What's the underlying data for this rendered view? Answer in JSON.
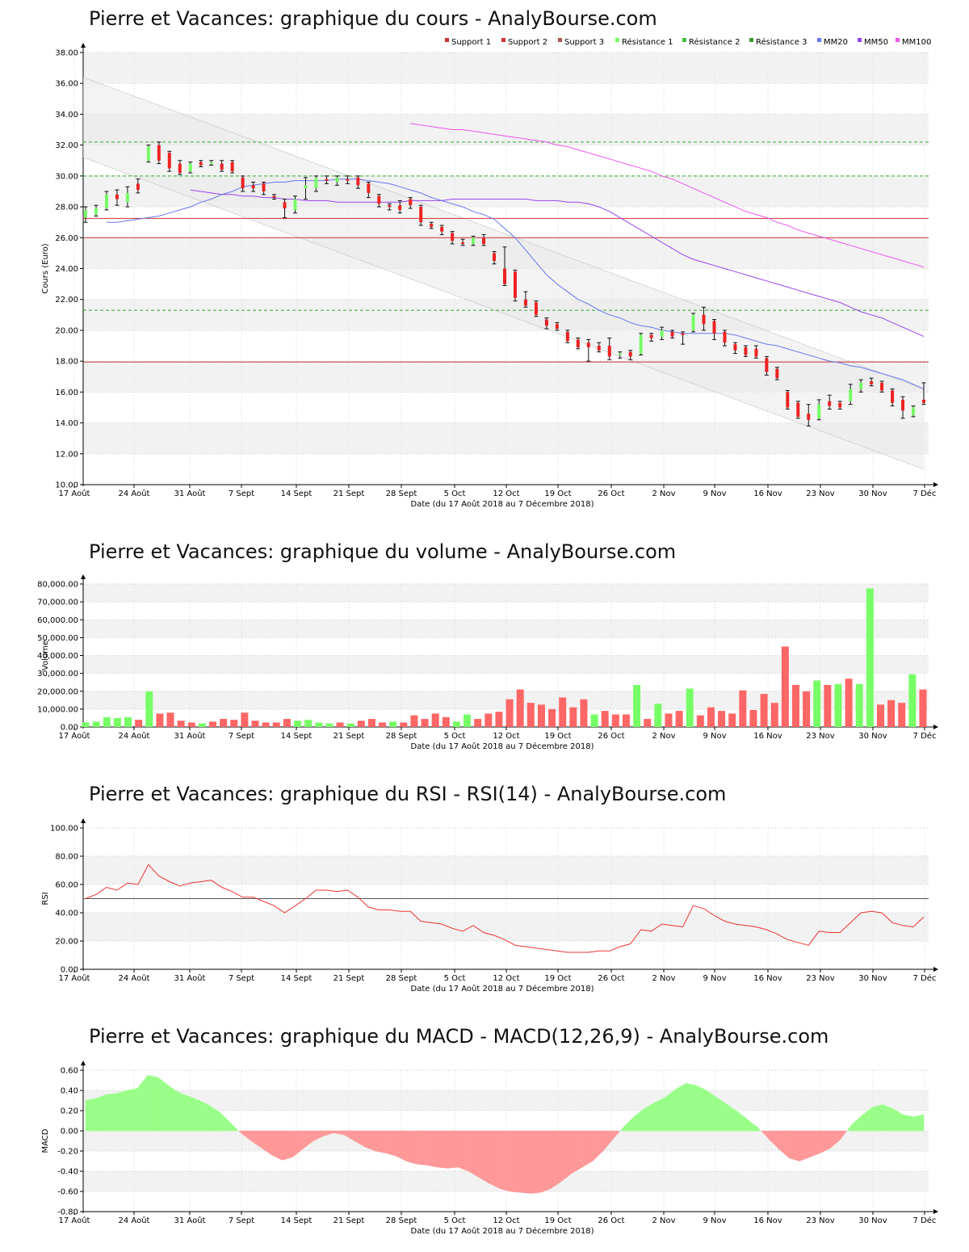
{
  "colors": {
    "up": "#77ff66",
    "down": "#ee2222",
    "support_line": "#cc3333",
    "resistance_line": "#33aa33",
    "mm20": "#6677ee",
    "mm50": "#9944ee",
    "mm100": "#ee55ee",
    "vol_up": "#77ff66",
    "vol_down": "#ff6666",
    "rsi": "#ee3333",
    "macd_pos": "#99ff88",
    "macd_neg": "#ff9999",
    "band": "#f2f2f2"
  },
  "x_ticks": [
    "17 Août",
    "24 Août",
    "31 Août",
    "7 Sept",
    "14 Sept",
    "21 Sept",
    "28 Sept",
    "5 Oct",
    "12 Oct",
    "19 Oct",
    "26 Oct",
    "2 Nov",
    "9 Nov",
    "16 Nov",
    "23 Nov",
    "30 Nov",
    "7 Déc"
  ],
  "x_label": "Date (du 17 Août 2018 au 7 Décembre 2018)",
  "chart_data": [
    {
      "type": "candlestick",
      "title": "Pierre et Vacances: graphique du cours - AnalyBourse.com",
      "ylabel": "Cours (Euro)",
      "xlabel": "Date (du 17 Août 2018 au 7 Décembre 2018)",
      "ylim": [
        10,
        38
      ],
      "y_ticks": [
        "10.00",
        "12.00",
        "14.00",
        "16.00",
        "18.00",
        "20.00",
        "22.00",
        "24.00",
        "26.00",
        "28.00",
        "30.00",
        "32.00",
        "34.00",
        "36.00",
        "38.00"
      ],
      "legend": [
        "Support 1",
        "Support 2",
        "Support 3",
        "Résistance 1",
        "Résistance 2",
        "Résistance 3",
        "MM20",
        "MM50",
        "MM100"
      ],
      "legend_position": "top-right",
      "supports": [
        27.25,
        26.0,
        17.95
      ],
      "resistances": [
        32.2,
        30.0,
        21.3
      ],
      "channel_upper": [
        36.4,
        16.2
      ],
      "channel_lower": [
        31.2,
        11.0
      ],
      "candles": [
        {
          "o": 27.3,
          "c": 27.8,
          "h": 28.0,
          "l": 27.0
        },
        {
          "o": 27.5,
          "c": 27.9,
          "h": 28.1,
          "l": 27.4
        },
        {
          "o": 27.9,
          "c": 28.8,
          "h": 29.0,
          "l": 27.8
        },
        {
          "o": 28.8,
          "c": 28.5,
          "h": 29.1,
          "l": 28.1
        },
        {
          "o": 28.3,
          "c": 28.9,
          "h": 29.3,
          "l": 28.0
        },
        {
          "o": 29.5,
          "c": 29.1,
          "h": 29.8,
          "l": 28.9
        },
        {
          "o": 31.0,
          "c": 31.9,
          "h": 32.0,
          "l": 30.9
        },
        {
          "o": 32.0,
          "c": 31.0,
          "h": 32.2,
          "l": 30.8
        },
        {
          "o": 31.5,
          "c": 30.5,
          "h": 31.6,
          "l": 30.3
        },
        {
          "o": 30.8,
          "c": 30.2,
          "h": 31.0,
          "l": 30.1
        },
        {
          "o": 30.3,
          "c": 30.8,
          "h": 30.9,
          "l": 30.2
        },
        {
          "o": 30.9,
          "c": 30.7,
          "h": 31.0,
          "l": 30.6
        },
        {
          "o": 30.8,
          "c": 30.9,
          "h": 31.0,
          "l": 30.7
        },
        {
          "o": 30.8,
          "c": 30.4,
          "h": 31.0,
          "l": 30.3
        },
        {
          "o": 30.9,
          "c": 30.3,
          "h": 31.0,
          "l": 30.2
        },
        {
          "o": 29.9,
          "c": 29.2,
          "h": 30.0,
          "l": 29.0
        },
        {
          "o": 29.4,
          "c": 29.2,
          "h": 29.6,
          "l": 29.0
        },
        {
          "o": 29.5,
          "c": 29.0,
          "h": 29.6,
          "l": 28.8
        },
        {
          "o": 28.7,
          "c": 28.6,
          "h": 28.8,
          "l": 28.5
        },
        {
          "o": 28.3,
          "c": 27.9,
          "h": 28.5,
          "l": 27.3
        },
        {
          "o": 27.8,
          "c": 28.5,
          "h": 28.7,
          "l": 27.6
        },
        {
          "o": 29.2,
          "c": 29.4,
          "h": 29.9,
          "l": 28.5
        },
        {
          "o": 29.2,
          "c": 29.9,
          "h": 30.0,
          "l": 29.0
        },
        {
          "o": 29.8,
          "c": 29.7,
          "h": 30.0,
          "l": 29.5
        },
        {
          "o": 29.6,
          "c": 29.9,
          "h": 30.0,
          "l": 29.4
        },
        {
          "o": 29.8,
          "c": 29.7,
          "h": 30.0,
          "l": 29.5
        },
        {
          "o": 29.9,
          "c": 29.4,
          "h": 30.0,
          "l": 29.2
        },
        {
          "o": 29.5,
          "c": 28.9,
          "h": 29.6,
          "l": 28.6
        },
        {
          "o": 28.7,
          "c": 28.2,
          "h": 28.8,
          "l": 28.0
        },
        {
          "o": 28.1,
          "c": 28.0,
          "h": 28.2,
          "l": 27.8
        },
        {
          "o": 28.1,
          "c": 27.8,
          "h": 28.4,
          "l": 27.6
        },
        {
          "o": 28.5,
          "c": 28.1,
          "h": 28.6,
          "l": 27.9
        },
        {
          "o": 28.0,
          "c": 27.0,
          "h": 28.1,
          "l": 26.8
        },
        {
          "o": 26.9,
          "c": 26.7,
          "h": 27.0,
          "l": 26.6
        },
        {
          "o": 26.7,
          "c": 26.4,
          "h": 26.8,
          "l": 26.2
        },
        {
          "o": 26.3,
          "c": 25.8,
          "h": 26.4,
          "l": 25.6
        },
        {
          "o": 25.7,
          "c": 25.6,
          "h": 25.9,
          "l": 25.5
        },
        {
          "o": 25.6,
          "c": 26.0,
          "h": 26.1,
          "l": 25.5
        },
        {
          "o": 26.0,
          "c": 25.6,
          "h": 26.2,
          "l": 25.5
        },
        {
          "o": 25.0,
          "c": 24.5,
          "h": 25.1,
          "l": 24.3
        },
        {
          "o": 24.0,
          "c": 23.0,
          "h": 25.4,
          "l": 22.9
        },
        {
          "o": 23.8,
          "c": 22.1,
          "h": 23.9,
          "l": 21.9
        },
        {
          "o": 22.0,
          "c": 21.6,
          "h": 22.5,
          "l": 21.5
        },
        {
          "o": 21.8,
          "c": 21.0,
          "h": 21.9,
          "l": 20.9
        },
        {
          "o": 20.7,
          "c": 20.3,
          "h": 20.8,
          "l": 20.1
        },
        {
          "o": 20.4,
          "c": 20.1,
          "h": 20.5,
          "l": 20.0
        },
        {
          "o": 19.9,
          "c": 19.3,
          "h": 20.0,
          "l": 19.2
        },
        {
          "o": 19.4,
          "c": 18.9,
          "h": 19.5,
          "l": 18.8
        },
        {
          "o": 19.2,
          "c": 18.9,
          "h": 19.4,
          "l": 18.0
        },
        {
          "o": 19.0,
          "c": 18.7,
          "h": 19.2,
          "l": 18.6
        },
        {
          "o": 19.0,
          "c": 18.3,
          "h": 19.5,
          "l": 18.1
        },
        {
          "o": 18.4,
          "c": 18.5,
          "h": 18.6,
          "l": 18.2
        },
        {
          "o": 18.6,
          "c": 18.3,
          "h": 18.7,
          "l": 18.1
        },
        {
          "o": 18.5,
          "c": 19.7,
          "h": 19.8,
          "l": 18.4
        },
        {
          "o": 19.7,
          "c": 19.5,
          "h": 19.8,
          "l": 19.3
        },
        {
          "o": 19.6,
          "c": 20.0,
          "h": 20.2,
          "l": 19.4
        },
        {
          "o": 19.9,
          "c": 19.6,
          "h": 20.0,
          "l": 19.5
        },
        {
          "o": 19.8,
          "c": 19.7,
          "h": 19.9,
          "l": 19.1
        },
        {
          "o": 20.0,
          "c": 21.0,
          "h": 21.1,
          "l": 19.9
        },
        {
          "o": 21.0,
          "c": 20.4,
          "h": 21.5,
          "l": 20.0
        },
        {
          "o": 20.6,
          "c": 19.8,
          "h": 20.7,
          "l": 19.4
        },
        {
          "o": 19.9,
          "c": 19.2,
          "h": 20.0,
          "l": 19.0
        },
        {
          "o": 19.1,
          "c": 18.7,
          "h": 19.2,
          "l": 18.5
        },
        {
          "o": 18.9,
          "c": 18.4,
          "h": 19.0,
          "l": 18.3
        },
        {
          "o": 18.8,
          "c": 18.3,
          "h": 19.0,
          "l": 18.2
        },
        {
          "o": 18.2,
          "c": 17.3,
          "h": 18.3,
          "l": 17.1
        },
        {
          "o": 17.5,
          "c": 16.9,
          "h": 17.6,
          "l": 16.8
        },
        {
          "o": 16.0,
          "c": 15.0,
          "h": 16.1,
          "l": 14.9
        },
        {
          "o": 15.3,
          "c": 14.4,
          "h": 15.4,
          "l": 14.3
        },
        {
          "o": 14.6,
          "c": 14.2,
          "h": 15.2,
          "l": 13.8
        },
        {
          "o": 14.3,
          "c": 15.2,
          "h": 15.5,
          "l": 14.2
        },
        {
          "o": 15.4,
          "c": 15.1,
          "h": 15.8,
          "l": 14.9
        },
        {
          "o": 15.3,
          "c": 15.0,
          "h": 15.4,
          "l": 14.9
        },
        {
          "o": 15.4,
          "c": 16.2,
          "h": 16.5,
          "l": 15.2
        },
        {
          "o": 16.2,
          "c": 16.6,
          "h": 16.8,
          "l": 16.0
        },
        {
          "o": 16.7,
          "c": 16.5,
          "h": 16.9,
          "l": 16.4
        },
        {
          "o": 16.6,
          "c": 16.1,
          "h": 16.7,
          "l": 16.0
        },
        {
          "o": 16.1,
          "c": 15.3,
          "h": 16.2,
          "l": 15.1
        },
        {
          "o": 15.5,
          "c": 14.8,
          "h": 15.7,
          "l": 14.3
        },
        {
          "o": 14.5,
          "c": 15.0,
          "h": 15.1,
          "l": 14.4
        },
        {
          "o": 15.5,
          "c": 15.3,
          "h": 16.6,
          "l": 15.2
        }
      ],
      "mm20": [
        27.0,
        27.0,
        27.1,
        27.2,
        27.3,
        27.4,
        27.6,
        27.8,
        28.0,
        28.3,
        28.5,
        28.8,
        29.0,
        29.3,
        29.4,
        29.5,
        29.6,
        29.6,
        29.7,
        29.7,
        29.7,
        29.7,
        29.8,
        29.8,
        29.8,
        29.7,
        29.6,
        29.5,
        29.3,
        29.1,
        28.9,
        28.6,
        28.4,
        28.2,
        28.0,
        27.7,
        27.5,
        27.2,
        26.6,
        26.0,
        25.2,
        24.4,
        23.6,
        23.0,
        22.5,
        22.0,
        21.7,
        21.3,
        21.0,
        20.8,
        20.5,
        20.3,
        20.2,
        20.0,
        19.9,
        19.8,
        19.8,
        19.8,
        19.8,
        19.8,
        19.7,
        19.5,
        19.3,
        19.1,
        19.0,
        18.8,
        18.6,
        18.4,
        18.2,
        18.0,
        17.9,
        17.7,
        17.6,
        17.4,
        17.2,
        17.0,
        16.8,
        16.5,
        16.2
      ],
      "mm50": [
        29.1,
        29.0,
        28.9,
        28.8,
        28.8,
        28.7,
        28.7,
        28.6,
        28.6,
        28.5,
        28.5,
        28.4,
        28.4,
        28.4,
        28.3,
        28.3,
        28.3,
        28.3,
        28.3,
        28.3,
        28.3,
        28.4,
        28.4,
        28.4,
        28.4,
        28.5,
        28.5,
        28.5,
        28.5,
        28.5,
        28.5,
        28.5,
        28.5,
        28.4,
        28.4,
        28.4,
        28.3,
        28.3,
        28.2,
        28.0,
        27.7,
        27.3,
        26.9,
        26.5,
        26.1,
        25.7,
        25.3,
        24.9,
        24.6,
        24.4,
        24.2,
        24.0,
        23.8,
        23.6,
        23.4,
        23.2,
        23.0,
        22.8,
        22.6,
        22.4,
        22.2,
        22.0,
        21.8,
        21.5,
        21.2,
        21.0,
        20.8,
        20.5,
        20.2,
        19.9,
        19.6
      ],
      "mm100": [
        33.4,
        33.3,
        33.2,
        33.1,
        33.0,
        33.0,
        32.9,
        32.8,
        32.7,
        32.6,
        32.5,
        32.4,
        32.3,
        32.2,
        32.0,
        31.9,
        31.7,
        31.5,
        31.3,
        31.1,
        30.9,
        30.7,
        30.5,
        30.3,
        30.0,
        29.8,
        29.5,
        29.2,
        28.9,
        28.6,
        28.3,
        28.0,
        27.7,
        27.5,
        27.3,
        27.0,
        26.8,
        26.5,
        26.3,
        26.1,
        25.9,
        25.7,
        25.5,
        25.3,
        25.1,
        24.9,
        24.7,
        24.5,
        24.3,
        24.1
      ]
    },
    {
      "type": "bar",
      "title": "Pierre et Vacances: graphique du volume - AnalyBourse.com",
      "ylabel": "Volume",
      "xlabel": "Date (du 17 Août 2018 au 7 Décembre 2018)",
      "ylim": [
        0,
        80000
      ],
      "y_ticks": [
        "0.00",
        "10,000.00",
        "20,000.00",
        "30,000.00",
        "40,000.00",
        "50,000.00",
        "60,000.00",
        "70,000.00",
        "80,000.00"
      ],
      "values": [
        2500,
        3000,
        5500,
        5000,
        5500,
        4000,
        20000,
        7500,
        8000,
        3500,
        2500,
        2000,
        3000,
        4500,
        4000,
        8000,
        3500,
        2500,
        2500,
        4500,
        3500,
        4000,
        2500,
        2000,
        2500,
        2000,
        3500,
        4500,
        2500,
        3000,
        2500,
        6500,
        4500,
        7500,
        5500,
        3000,
        7000,
        4500,
        7500,
        8500,
        15500,
        21000,
        13500,
        12500,
        10000,
        16500,
        11000,
        15500,
        7000,
        9000,
        7000,
        7000,
        23500,
        4500,
        13000,
        7500,
        9000,
        21500,
        6500,
        11000,
        9000,
        7500,
        20500,
        9500,
        18500,
        13500,
        45000,
        23500,
        20000,
        26000,
        23500,
        24000,
        27000,
        24000,
        77500,
        12500,
        15000,
        13500,
        29500,
        21000
      ],
      "up": [
        1,
        1,
        1,
        1,
        1,
        0,
        1,
        0,
        0,
        0,
        0,
        1,
        0,
        0,
        0,
        0,
        0,
        0,
        0,
        0,
        1,
        1,
        1,
        1,
        0,
        1,
        0,
        0,
        0,
        1,
        0,
        0,
        0,
        0,
        0,
        1,
        1,
        0,
        0,
        0,
        0,
        0,
        0,
        0,
        0,
        0,
        0,
        0,
        1,
        0,
        0,
        0,
        1,
        0,
        1,
        0,
        0,
        1,
        0,
        0,
        0,
        0,
        0,
        0,
        0,
        0,
        0,
        0,
        0,
        1,
        0,
        1,
        0,
        1,
        1,
        0,
        0,
        0,
        1,
        0
      ]
    },
    {
      "type": "line",
      "title": "Pierre et Vacances: graphique du RSI - RSI(14) - AnalyBourse.com",
      "ylabel": "RSI",
      "xlabel": "Date (du 17 Août 2018 au 7 Décembre 2018)",
      "ylim": [
        0,
        100
      ],
      "y_ticks": [
        "0.00",
        "20.00",
        "40.00",
        "60.00",
        "80.00",
        "100.00"
      ],
      "reference_line": 50,
      "values": [
        50,
        53,
        58,
        56,
        61,
        60,
        74,
        66,
        62,
        59,
        61,
        62,
        63,
        58,
        55,
        51,
        51,
        48,
        45,
        40,
        45,
        50,
        56,
        56,
        55,
        56,
        51,
        44,
        42,
        42,
        41,
        41,
        34,
        33,
        32,
        29,
        27,
        31,
        26,
        24,
        21,
        17,
        16,
        15,
        14,
        13,
        12,
        12,
        12,
        13,
        13,
        16,
        18,
        28,
        27,
        32,
        31,
        30,
        45,
        43,
        38,
        34,
        32,
        31,
        30,
        28,
        25,
        21,
        19,
        17,
        27,
        26,
        26,
        33,
        40,
        41,
        40,
        33,
        31,
        30,
        37
      ]
    },
    {
      "type": "area",
      "title": "Pierre et Vacances: graphique du MACD - MACD(12,26,9) - AnalyBourse.com",
      "ylabel": "MACD",
      "xlabel": "Date (du 17 Août 2018 au 7 Décembre 2018)",
      "ylim": [
        -0.8,
        0.6
      ],
      "y_ticks": [
        "-0.80",
        "-0.60",
        "-0.40",
        "-0.20",
        "0.00",
        "0.20",
        "0.40",
        "0.60"
      ],
      "values": [
        0.3,
        0.32,
        0.36,
        0.37,
        0.4,
        0.42,
        0.55,
        0.53,
        0.45,
        0.38,
        0.34,
        0.3,
        0.25,
        0.18,
        0.08,
        -0.02,
        -0.1,
        -0.17,
        -0.24,
        -0.29,
        -0.26,
        -0.18,
        -0.1,
        -0.05,
        -0.02,
        -0.04,
        -0.1,
        -0.16,
        -0.2,
        -0.22,
        -0.25,
        -0.3,
        -0.33,
        -0.34,
        -0.36,
        -0.37,
        -0.36,
        -0.4,
        -0.46,
        -0.52,
        -0.57,
        -0.6,
        -0.61,
        -0.62,
        -0.61,
        -0.57,
        -0.5,
        -0.42,
        -0.36,
        -0.3,
        -0.2,
        -0.08,
        0.04,
        0.14,
        0.22,
        0.28,
        0.33,
        0.41,
        0.47,
        0.45,
        0.4,
        0.33,
        0.26,
        0.19,
        0.11,
        0.03,
        -0.08,
        -0.18,
        -0.27,
        -0.3,
        -0.26,
        -0.22,
        -0.17,
        -0.08,
        0.06,
        0.15,
        0.23,
        0.26,
        0.22,
        0.16,
        0.14,
        0.16
      ]
    }
  ]
}
